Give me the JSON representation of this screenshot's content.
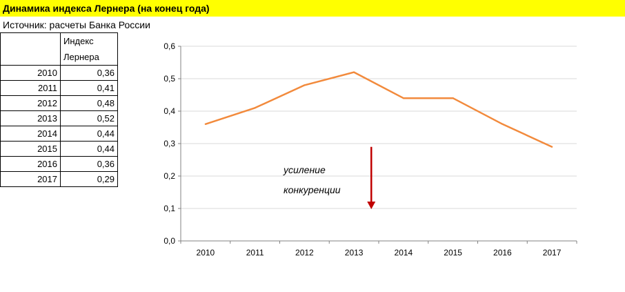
{
  "header": {
    "title": "Динамика индекса Лернера (на конец года)",
    "source": "Источник: расчеты Банка России"
  },
  "table": {
    "header_line1": "Индекс",
    "header_line2": "Лернера",
    "rows": [
      {
        "year": "2010",
        "value": "0,36"
      },
      {
        "year": "2011",
        "value": "0,41"
      },
      {
        "year": "2012",
        "value": "0,48"
      },
      {
        "year": "2013",
        "value": "0,52"
      },
      {
        "year": "2014",
        "value": "0,44"
      },
      {
        "year": "2015",
        "value": "0,44"
      },
      {
        "year": "2016",
        "value": "0,36"
      },
      {
        "year": "2017",
        "value": "0,29"
      }
    ]
  },
  "chart_data": {
    "type": "line",
    "title": "",
    "xlabel": "",
    "ylabel": "",
    "categories": [
      "2010",
      "2011",
      "2012",
      "2013",
      "2014",
      "2015",
      "2016",
      "2017"
    ],
    "series": [
      {
        "values": [
          0.36,
          0.41,
          0.48,
          0.52,
          0.44,
          0.44,
          0.36,
          0.29
        ],
        "color": "#f28a3c"
      }
    ],
    "ylim": [
      0,
      0.6
    ],
    "yticks": [
      "0,0",
      "0,1",
      "0,2",
      "0,3",
      "0,4",
      "0,5",
      "0,6"
    ],
    "grid": true,
    "annotation": {
      "line1": "усиление",
      "line2": "конкуренции",
      "arrow_color": "#c00000",
      "arrow_from": 0.29,
      "arrow_to": 0.1,
      "arrow_x": 2013.35
    },
    "gridline_color": "#d9d9d9"
  }
}
